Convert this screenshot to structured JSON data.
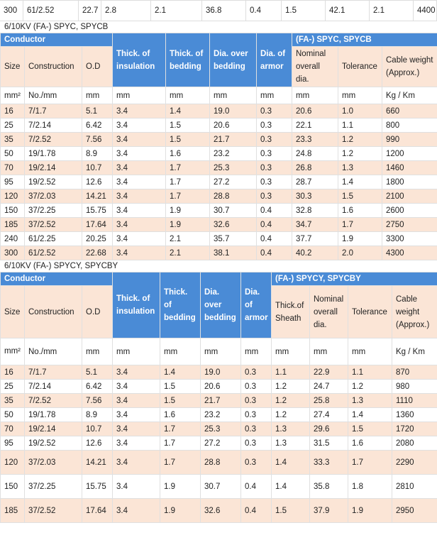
{
  "top_row": [
    "300",
    "61/2.52",
    "22.7",
    "2.8",
    "2.1",
    "36.8",
    "0.4",
    "1.5",
    "42.1",
    "2.1",
    "4400"
  ],
  "table1": {
    "caption": "6/10KV (FA-) SPYC, SPYCB",
    "group_left": "Conductor",
    "group_right": "(FA-) SPYC, SPYCB",
    "headers": {
      "size": "Size",
      "construction": "Construction",
      "od": "O.D",
      "insulation": "Thick. of insulation",
      "bedding": "Thick. of bedding",
      "dia_bedding": "Dia. over bedding",
      "dia_armor": "Dia. of armor",
      "nominal": "Nominal overall dia.",
      "tolerance": "Tolerance",
      "weight": "Cable weight (Approx.)"
    },
    "units": [
      "mm²",
      "No./mm",
      "mm",
      "mm",
      "mm",
      "mm",
      "mm",
      "mm",
      "mm",
      "Kg / Km"
    ],
    "rows": [
      [
        "16",
        "7/1.7",
        "5.1",
        "3.4",
        "1.4",
        "19.0",
        "0.3",
        "20.6",
        "1.0",
        "660"
      ],
      [
        "25",
        "7/2.14",
        "6.42",
        "3.4",
        "1.5",
        "20.6",
        "0.3",
        "22.1",
        "1.1",
        "800"
      ],
      [
        "35",
        "7/2.52",
        "7.56",
        "3.4",
        "1.5",
        "21.7",
        "0.3",
        "23.3",
        "1.2",
        "990"
      ],
      [
        "50",
        "19/1.78",
        "8.9",
        "3.4",
        "1.6",
        "23.2",
        "0.3",
        "24.8",
        "1.2",
        "1200"
      ],
      [
        "70",
        "19/2.14",
        "10.7",
        "3.4",
        "1.7",
        "25.3",
        "0.3",
        "26.8",
        "1.3",
        "1460"
      ],
      [
        "95",
        "19/2.52",
        "12.6",
        "3.4",
        "1.7",
        "27.2",
        "0.3",
        "28.7",
        "1.4",
        "1800"
      ],
      [
        "120",
        "37/2.03",
        "14.21",
        "3.4",
        "1.7",
        "28.8",
        "0.3",
        "30.3",
        "1.5",
        "2100"
      ],
      [
        "150",
        "37/2.25",
        "15.75",
        "3.4",
        "1.9",
        "30.7",
        "0.4",
        "32.8",
        "1.6",
        "2600"
      ],
      [
        "185",
        "37/2.52",
        "17.64",
        "3.4",
        "1.9",
        "32.6",
        "0.4",
        "34.7",
        "1.7",
        "2750"
      ],
      [
        "240",
        "61/2.25",
        "20.25",
        "3.4",
        "2.1",
        "35.7",
        "0.4",
        "37.7",
        "1.9",
        "3300"
      ],
      [
        "300",
        "61/2.52",
        "22.68",
        "3.4",
        "2.1",
        "38.1",
        "0.4",
        "40.2",
        "2.0",
        "4300"
      ]
    ]
  },
  "table2": {
    "caption": "6/10KV (FA-) SPYCY, SPYCBY",
    "group_left": "Conductor",
    "group_right": "(FA-) SPYCY, SPYCBY",
    "headers": {
      "size": "Size",
      "construction": "Construction",
      "od": "O.D",
      "insulation": "Thick. of insulation",
      "bedding": "Thick. of bedding",
      "dia_bedding": "Dia. over bedding",
      "dia_armor": "Dia. of armor",
      "sheath": "Thick.of Sheath",
      "nominal": "Nominal overall dia.",
      "tolerance": "Tolerance",
      "weight": "Cable weight (Approx.)"
    },
    "units": [
      "mm²",
      "No./mm",
      "mm",
      "mm",
      "mm",
      "mm",
      "mm",
      "mm",
      "mm",
      "mm",
      "Kg / Km"
    ],
    "rows": [
      [
        "16",
        "7/1.7",
        "5.1",
        "3.4",
        "1.4",
        "19.0",
        "0.3",
        "1.1",
        "22.9",
        "1.1",
        "870"
      ],
      [
        "25",
        "7/2.14",
        "6.42",
        "3.4",
        "1.5",
        "20.6",
        "0.3",
        "1.2",
        "24.7",
        "1.2",
        "980"
      ],
      [
        "35",
        "7/2.52",
        "7.56",
        "3.4",
        "1.5",
        "21.7",
        "0.3",
        "1.2",
        "25.8",
        "1.3",
        "1110"
      ],
      [
        "50",
        "19/1.78",
        "8.9",
        "3.4",
        "1.6",
        "23.2",
        "0.3",
        "1.2",
        "27.4",
        "1.4",
        "1360"
      ],
      [
        "70",
        "19/2.14",
        "10.7",
        "3.4",
        "1.7",
        "25.3",
        "0.3",
        "1.3",
        "29.6",
        "1.5",
        "1720"
      ],
      [
        "95",
        "19/2.52",
        "12.6",
        "3.4",
        "1.7",
        "27.2",
        "0.3",
        "1.3",
        "31.5",
        "1.6",
        "2080"
      ],
      [
        "120",
        "37/2.03",
        "14.21",
        "3.4",
        "1.7",
        "28.8",
        "0.3",
        "1.4",
        "33.3",
        "1.7",
        "2290"
      ],
      [
        "150",
        "37/2.25",
        "15.75",
        "3.4",
        "1.9",
        "30.7",
        "0.4",
        "1.4",
        "35.8",
        "1.8",
        "2810"
      ],
      [
        "185",
        "37/2.52",
        "17.64",
        "3.4",
        "1.9",
        "32.6",
        "0.4",
        "1.5",
        "37.9",
        "1.9",
        "2950"
      ]
    ]
  }
}
